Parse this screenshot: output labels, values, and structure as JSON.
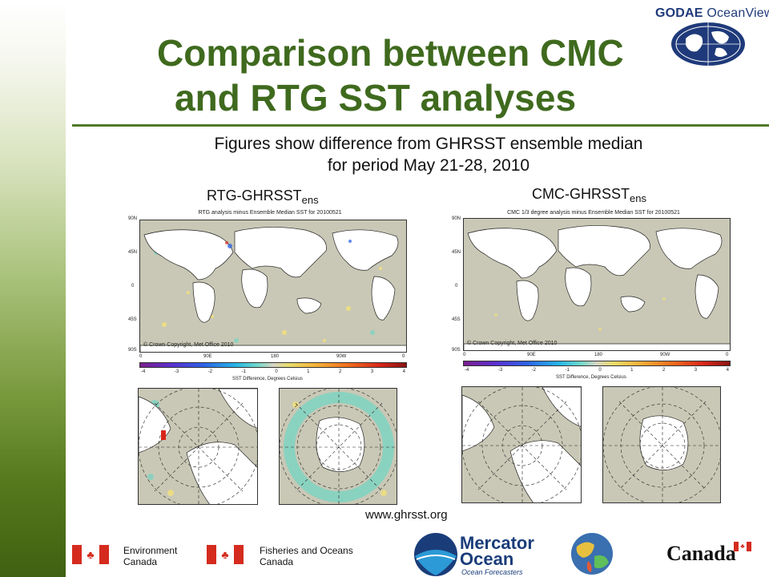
{
  "slide": {
    "title_line1": "Comparison between CMC",
    "title_line2": "and RTG SST analyses",
    "subtitle_line1": "Figures show difference from GHRSST ensemble median",
    "subtitle_line2": "for period May 21-28, 2010",
    "url": "www.ghrsst.org"
  },
  "brand": {
    "bold": "GODAE",
    "thin": "OceanView"
  },
  "panels": {
    "left": {
      "label_main": "RTG-GHRSST",
      "label_sub": "ens",
      "map_title": "RTG analysis minus Ensemble Median SST for 20100521",
      "copyright": "© Crown Copyright, Met Office 2010"
    },
    "right": {
      "label_main": "CMC-GHRSST",
      "label_sub": "ens",
      "map_title": "CMC 1/3 degree analysis minus Ensemble Median SST for 20100521",
      "copyright": "© Crown Copyright, Met Office 2010"
    },
    "lat_labels": [
      "90N",
      "45N",
      "0",
      "45S",
      "90S"
    ],
    "lon_labels": [
      "0",
      "90E",
      "180",
      "90W",
      "0"
    ],
    "colorbar_ticks": [
      "-4",
      "-3",
      "-2",
      "-1",
      "0",
      "1",
      "2",
      "3",
      "4"
    ],
    "colorbar_title": "SST Difference, Degrees Celsius"
  },
  "footer": {
    "env_line1": "Environment",
    "env_line2": "Canada",
    "dfo_line1": "Fisheries and Oceans",
    "dfo_line2": "Canada",
    "mercator_line1": "Mercator",
    "mercator_line2": "Ocean",
    "mercator_tagline": "Ocean Forecasters",
    "canada_wordmark": "Canada",
    "flag_leaf": "♣"
  },
  "colors": {
    "title_green": "#3f6a1e",
    "rule_green": "#4f7a28",
    "brand_blue": "#1f3a7a",
    "map_land": "#ffffff",
    "map_ocean": "#c9c8b6",
    "flag_red": "#d52b1e"
  }
}
